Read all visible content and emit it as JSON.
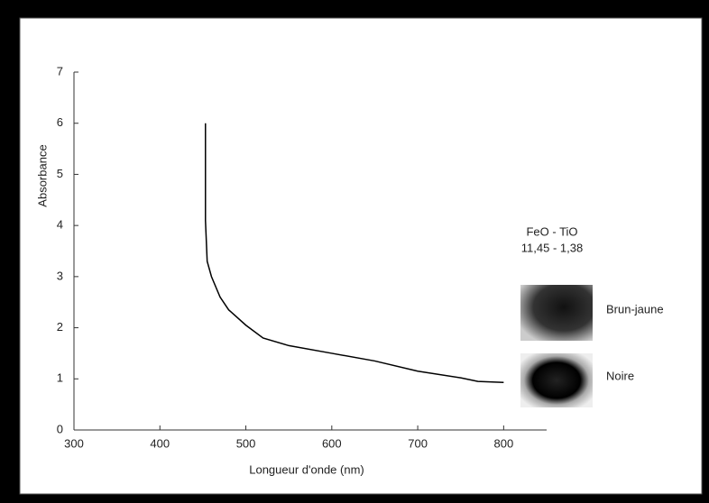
{
  "chart_data": {
    "type": "line",
    "y_label": "Absorbance",
    "x_label": "Longueur d'onde (nm)",
    "x": [
      453,
      453,
      455,
      460,
      470,
      480,
      500,
      520,
      550,
      600,
      650,
      700,
      750,
      770,
      800
    ],
    "series": [
      {
        "color": "#000000",
        "values": [
          6.0,
          4.1,
          3.3,
          3.0,
          2.6,
          2.35,
          2.05,
          1.8,
          1.65,
          1.5,
          1.35,
          1.15,
          1.02,
          0.95,
          0.93
        ]
      }
    ],
    "xlim": [
      300,
      850
    ],
    "ylim": [
      0,
      7
    ],
    "xticks": [
      300,
      400,
      500,
      600,
      700,
      800
    ],
    "yticks": [
      0,
      1,
      2,
      3,
      4,
      5,
      6,
      7
    ],
    "annotations": [
      "FeO - TiO",
      "11,45 - 1,38",
      "Brun-jaune",
      "Noire"
    ]
  }
}
